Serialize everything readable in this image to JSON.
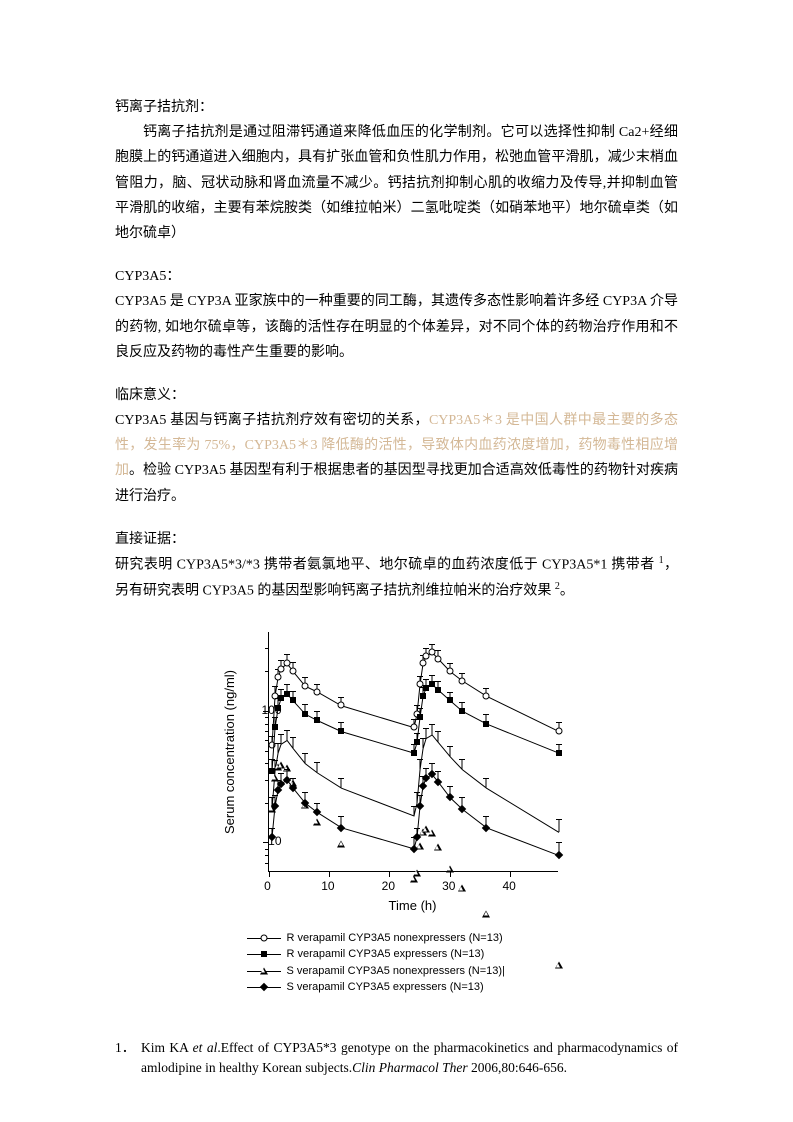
{
  "sections": {
    "s1": {
      "heading": "钙离子拮抗剂：",
      "body": "钙离子拮抗剂是通过阻滞钙通道来降低血压的化学制剂。它可以选择性抑制 Ca2+经细胞膜上的钙通道进入细胞内，具有扩张血管和负性肌力作用，松弛血管平滑肌，减少末梢血管阻力，脑、冠状动脉和肾血流量不减少。钙拮抗剂抑制心肌的收缩力及传导,并抑制血管平滑肌的收缩，主要有苯烷胺类（如维拉帕米）二氢吡啶类（如硝苯地平）地尔硫卓类（如地尔硫卓）"
    },
    "s2": {
      "heading": "CYP3A5：",
      "body": "CYP3A5 是 CYP3A 亚家族中的一种重要的同工酶，其遗传多态性影响着许多经 CYP3A 介导的药物, 如地尔硫卓等，该酶的活性存在明显的个体差异，对不同个体的药物治疗作用和不良反应及药物的毒性产生重要的影响。"
    },
    "s3": {
      "heading": "临床意义：",
      "body_pre": "CYP3A5 基因与钙离子拮抗剂疗效有密切的关系，",
      "body_hl": "CYP3A5＊3 是中国人群中最主要的多态性，发生率为 75%，CYP3A5＊3 降低酶的活性，导致体内血药浓度增加，药物毒性相应增加",
      "body_post": "。检验 CYP3A5 基因型有利于根据患者的基因型寻找更加合适高效低毒性的药物针对疾病进行治疗。"
    },
    "s4": {
      "heading": "直接证据：",
      "body_a": "研究表明 CYP3A5*3/*3 携带者氨氯地平、地尔硫卓的血药浓度低于 CYP3A5*1 携带者 ",
      "sup1": "1",
      "body_b": "，另有研究表明 CYP3A5 的基因型影响钙离子拮抗剂维拉帕米的治疗效果 ",
      "sup2": "2",
      "body_c": "。"
    }
  },
  "chart": {
    "type": "line-log",
    "xlabel": "Time (h)",
    "ylabel": "Serum concentration (ng/ml)",
    "xlim": [
      0,
      48
    ],
    "xtick_step": 10,
    "ylim": [
      6,
      400
    ],
    "ytick_major": [
      10,
      100
    ],
    "background_color": "#ffffff",
    "axis_color": "#000000",
    "series": [
      {
        "name": "R verapamil CYP3A5 nonexpressers (N=13)",
        "marker": "open-circle",
        "x": [
          0.5,
          1,
          1.5,
          2,
          3,
          4,
          6,
          8,
          12,
          24,
          24.5,
          25,
          25.5,
          26,
          27,
          28,
          30,
          32,
          36,
          48
        ],
        "y": [
          55,
          130,
          180,
          210,
          230,
          200,
          155,
          140,
          110,
          75,
          95,
          160,
          230,
          260,
          280,
          250,
          200,
          170,
          130,
          70
        ],
        "err": [
          10,
          25,
          30,
          35,
          40,
          35,
          25,
          20,
          18,
          12,
          15,
          25,
          35,
          40,
          45,
          40,
          30,
          25,
          20,
          12
        ]
      },
      {
        "name": "R verapamil CYP3A5 expressers (N=13)",
        "marker": "filled-square",
        "x": [
          0.5,
          1,
          1.5,
          2,
          3,
          4,
          6,
          8,
          12,
          24,
          24.5,
          25,
          25.5,
          26,
          27,
          28,
          30,
          32,
          36,
          48
        ],
        "y": [
          35,
          75,
          105,
          125,
          135,
          120,
          95,
          85,
          70,
          48,
          58,
          90,
          130,
          150,
          160,
          145,
          120,
          100,
          80,
          48
        ],
        "err": [
          8,
          15,
          20,
          22,
          25,
          22,
          18,
          15,
          12,
          8,
          10,
          16,
          22,
          25,
          28,
          25,
          20,
          17,
          14,
          8
        ]
      },
      {
        "name": "S verapamil CYP3A5 nonexpressers (N=13)",
        "marker": "open-triangle",
        "x": [
          0.5,
          1,
          1.5,
          2,
          3,
          4,
          6,
          8,
          12,
          24,
          24.5,
          25,
          25.5,
          26,
          27,
          28,
          30,
          32,
          36,
          48
        ],
        "y": [
          18,
          35,
          48,
          56,
          60,
          52,
          40,
          34,
          26,
          16,
          20,
          36,
          52,
          62,
          66,
          58,
          45,
          36,
          26,
          12
        ],
        "err": [
          4,
          7,
          9,
          11,
          12,
          11,
          8,
          7,
          5,
          3,
          4,
          7,
          10,
          12,
          13,
          12,
          9,
          7,
          5,
          3
        ]
      },
      {
        "name": "S verapamil CYP3A5 expressers (N=13)",
        "marker": "filled-diamond",
        "x": [
          0.5,
          1,
          1.5,
          2,
          3,
          4,
          6,
          8,
          12,
          24,
          24.5,
          25,
          25.5,
          26,
          27,
          28,
          30,
          32,
          36,
          48
        ],
        "y": [
          11,
          19,
          25,
          28,
          30,
          26,
          20,
          17,
          13,
          9,
          11,
          19,
          27,
          31,
          33,
          29,
          22,
          18,
          13,
          8
        ],
        "err": [
          2,
          4,
          5,
          6,
          6,
          5,
          4,
          3,
          3,
          2,
          2,
          4,
          5,
          6,
          7,
          6,
          5,
          4,
          3,
          2
        ]
      }
    ],
    "legend": [
      "R verapamil CYP3A5 nonexpressers (N=13)",
      "R verapamil CYP3A5 expressers (N=13)",
      "S verapamil CYP3A5 nonexpressers (N=13)|",
      "S verapamil CYP3A5 expressers (N=13)"
    ]
  },
  "references": {
    "r1_num": "1．",
    "r1_a": "Kim KA ",
    "r1_b": "et al",
    "r1_c": ".Effect of CYP3A5*3 genotype on the pharmacokinetics and pharmacodynamics of amlodipine in healthy Korean subjects.",
    "r1_d": "Clin Pharmacol Ther",
    "r1_e": " 2006,80:646-656."
  }
}
